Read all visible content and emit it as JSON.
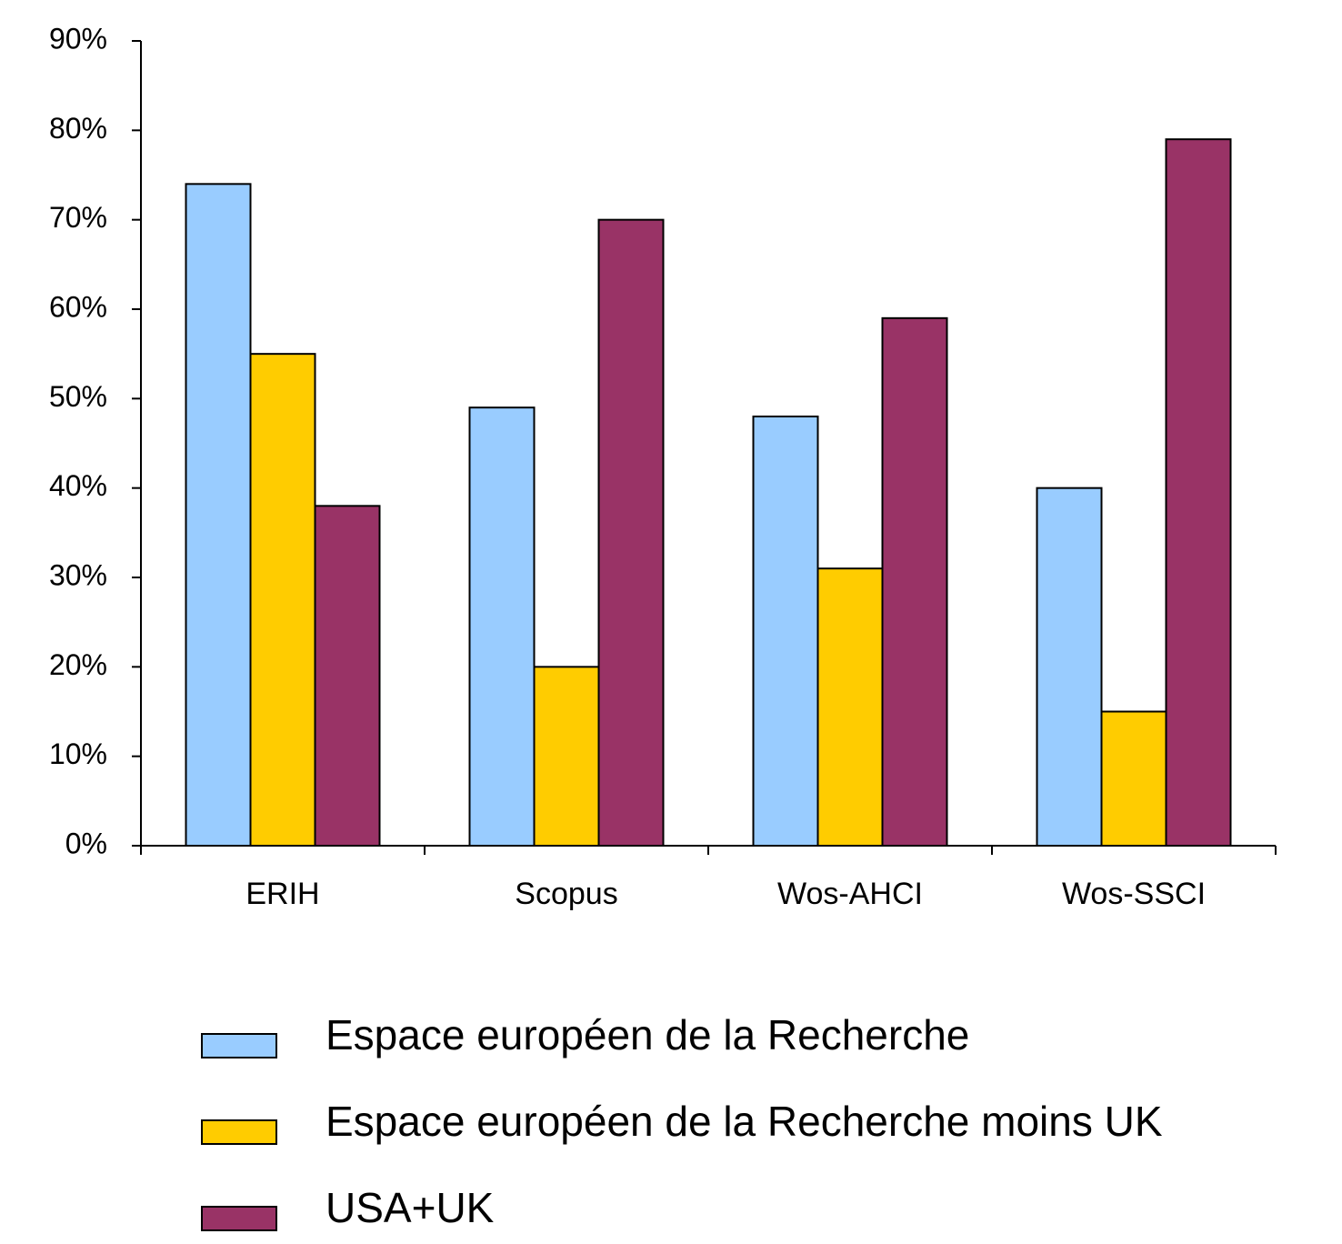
{
  "chart_data": {
    "type": "bar",
    "categories": [
      "ERIH",
      "Scopus",
      "Wos-AHCI",
      "Wos-SSCI"
    ],
    "series": [
      {
        "name": "Espace européen de la Recherche",
        "color": "#99ccff",
        "values": [
          74,
          49,
          48,
          40
        ]
      },
      {
        "name": "Espace européen de la Recherche moins UK",
        "color": "#ffcc00",
        "values": [
          55,
          20,
          31,
          15
        ]
      },
      {
        "name": "USA+UK",
        "color": "#993366",
        "values": [
          38,
          70,
          59,
          79
        ]
      }
    ],
    "ylim": [
      0,
      90
    ],
    "yticks": [
      {
        "value": 0,
        "label": "0%"
      },
      {
        "value": 10,
        "label": "10%"
      },
      {
        "value": 20,
        "label": "20%"
      },
      {
        "value": 30,
        "label": "30%"
      },
      {
        "value": 40,
        "label": "40%"
      },
      {
        "value": 50,
        "label": "50%"
      },
      {
        "value": 60,
        "label": "60%"
      },
      {
        "value": 70,
        "label": "70%"
      },
      {
        "value": 80,
        "label": "80%"
      },
      {
        "value": 90,
        "label": "90%"
      }
    ],
    "grid": false,
    "legend": "bottom"
  }
}
